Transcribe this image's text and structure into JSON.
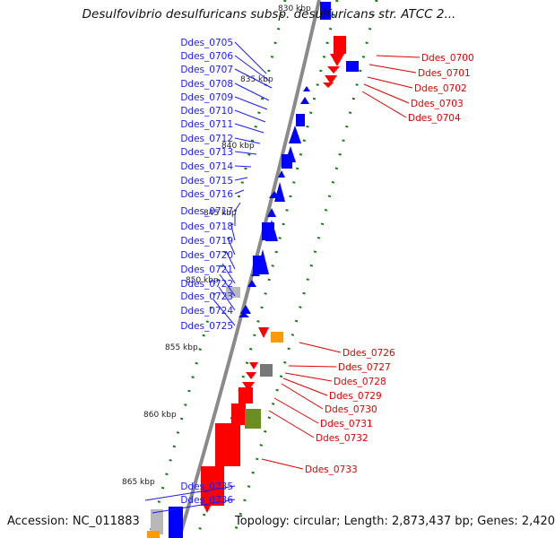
{
  "title": "Desulfovibrio desulfuricans subsp. desulfuricans str. ATCC 2...",
  "footer": {
    "accession": "Accession: NC_011883",
    "summary": "Topology: circular; Length: 2,873,437 bp; Genes: 2,420"
  },
  "colors": {
    "backbone": "#8a8a8a",
    "plus_strand": "#0000ff",
    "minus_strand": "#ff0000",
    "gc_marks": "#1a7a1a",
    "label_blue": "#1a1aff",
    "label_red": "#e00000",
    "gray_feature": "#b8b8b8",
    "olive_feature": "#6b8e23",
    "orange_feature": "#ff9900"
  },
  "kbp_ticks": [
    "830 kbp",
    "835 kbp",
    "840 kbp",
    "845 kbp",
    "850 kbp",
    "855 kbp",
    "860 kbp",
    "865 kbp"
  ],
  "gene_labels_left": [
    "Ddes_0705",
    "Ddes_0706",
    "Ddes_0707",
    "Ddes_0708",
    "Ddes_0709",
    "Ddes_0710",
    "Ddes_0711",
    "Ddes_0712",
    "Ddes_0713",
    "Ddes_0714",
    "Ddes_0715",
    "Ddes_0716",
    "Ddes_0717",
    "Ddes_0718",
    "Ddes_0719",
    "Ddes_0720",
    "Ddes_0721",
    "Ddes_0722",
    "Ddes_0723",
    "Ddes_0724",
    "Ddes_0725",
    "Ddes_0735",
    "Ddes_0736"
  ],
  "gene_labels_right": [
    "Ddes_0700",
    "Ddes_0701",
    "Ddes_0702",
    "Ddes_0703",
    "Ddes_0704",
    "Ddes_0726",
    "Ddes_0727",
    "Ddes_0728",
    "Ddes_0729",
    "Ddes_0730",
    "Ddes_0731",
    "Ddes_0732",
    "Ddes_0733"
  ]
}
